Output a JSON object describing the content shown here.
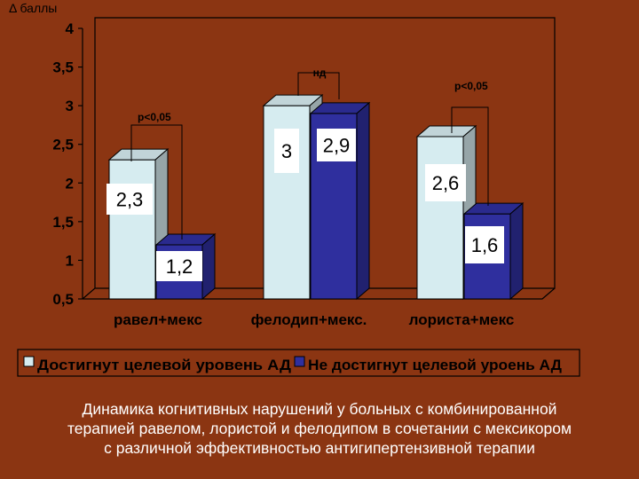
{
  "slide": {
    "caption_lines": [
      "Динамика когнитивных нарушений у больных с комбинированной",
      "терапией равелом, лористой и фелодипом в сочетании с мексикором",
      "с различной эффективностью антигипертензивной терапии"
    ]
  },
  "chart_data": {
    "type": "bar",
    "ylabel": "Δ баллы",
    "ylim": [
      0.5,
      4
    ],
    "yticks": [
      "0,5",
      "1",
      "1,5",
      "2",
      "2,5",
      "3",
      "3,5",
      "4"
    ],
    "ytick_values": [
      0.5,
      1,
      1.5,
      2,
      2.5,
      3,
      3.5,
      4
    ],
    "categories": [
      "равел+мекс",
      "фелодип+мекс.",
      "лориста+мекс"
    ],
    "series": [
      {
        "name": "Достигнут целевой уровень АД",
        "values": [
          2.3,
          3,
          2.6
        ],
        "labels": [
          "2,3",
          "3",
          "2,6"
        ],
        "color": "#d6ecf0"
      },
      {
        "name": "Не достигнут целевой уроень АД",
        "values": [
          1.2,
          2.9,
          1.6
        ],
        "labels": [
          "1,2",
          "2,9",
          "1,6"
        ],
        "color": "#2f2f9e"
      }
    ],
    "annotations": [
      "p<0,05",
      "нд",
      "p<0,05"
    ],
    "grid": false,
    "legend_position": "bottom",
    "bar_style": "3d",
    "colors": {
      "background": "#8b3512",
      "plot_wall": "#8b3512",
      "axis": "#000000",
      "text": "#000000",
      "label_box": "#ffffff"
    }
  }
}
